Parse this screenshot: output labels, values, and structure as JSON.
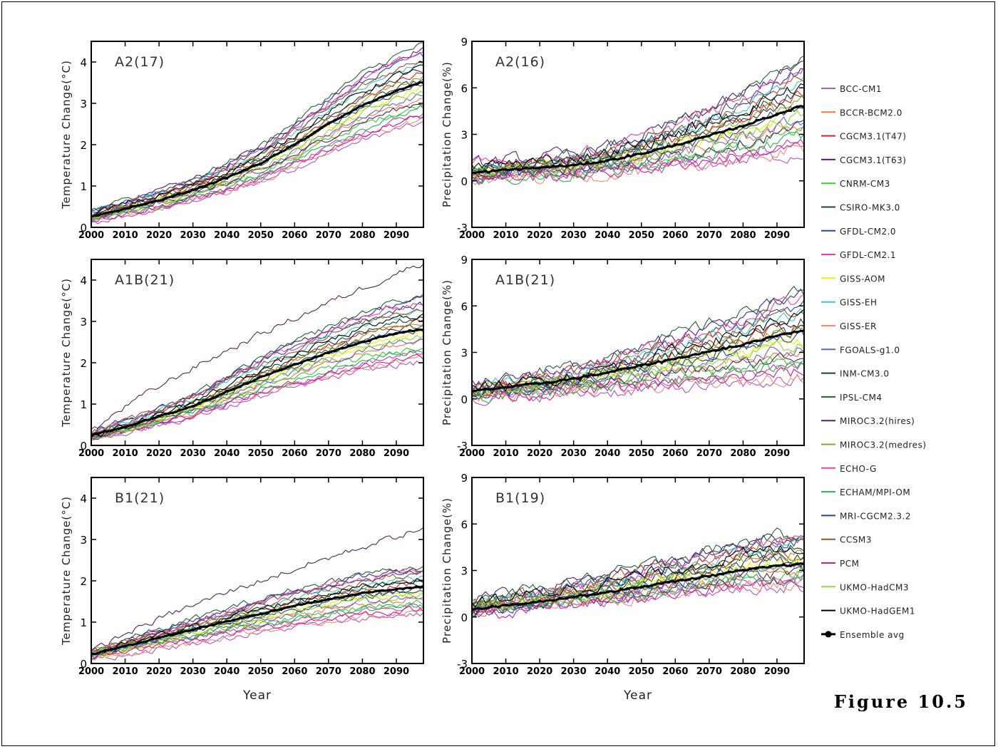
{
  "figure_label": "Figure 10.5",
  "models": [
    {
      "name": "BCC-CM1",
      "color": "#b455c8"
    },
    {
      "name": "BCCR-BCM2.0",
      "color": "#f07a3a"
    },
    {
      "name": "CGCM3.1(T47)",
      "color": "#e02020"
    },
    {
      "name": "CGCM3.1(T63)",
      "color": "#5a1a8c"
    },
    {
      "name": "CNRM-CM3",
      "color": "#3cc83c"
    },
    {
      "name": "CSIRO-MK3.0",
      "color": "#1e4646"
    },
    {
      "name": "GFDL-CM2.0",
      "color": "#2846a0"
    },
    {
      "name": "GFDL-CM2.1",
      "color": "#d23cb4"
    },
    {
      "name": "GISS-AOM",
      "color": "#f0f000"
    },
    {
      "name": "GISS-EH",
      "color": "#3cc8c8"
    },
    {
      "name": "GISS-ER",
      "color": "#f08c78"
    },
    {
      "name": "FGOALS-g1.0",
      "color": "#6464c8"
    },
    {
      "name": "INM-CM3.0",
      "color": "#144628"
    },
    {
      "name": "IPSL-CM4",
      "color": "#1e6432"
    },
    {
      "name": "MIROC3.2(hires)",
      "color": "#50285a"
    },
    {
      "name": "MIROC3.2(medres)",
      "color": "#96a028"
    },
    {
      "name": "ECHO-G",
      "color": "#e646a0"
    },
    {
      "name": "ECHAM/MPI-OM",
      "color": "#28b450"
    },
    {
      "name": "MRI-CGCM2.3.2",
      "color": "#284682"
    },
    {
      "name": "CCSM3",
      "color": "#a0502d"
    },
    {
      "name": "PCM",
      "color": "#c81e96"
    },
    {
      "name": "UKMO-HadCM3",
      "color": "#8cdc3c"
    },
    {
      "name": "UKMO-HadGEM1",
      "color": "#000000"
    }
  ],
  "ensemble_label": "Ensemble avg",
  "chart_data": [
    {
      "type": "line",
      "panel": "A2 temperature",
      "label": "A2(17)",
      "ylabel": "Temperature Change(°C)",
      "xlabel": "",
      "x_ticks": [
        2000,
        2010,
        2020,
        2030,
        2040,
        2050,
        2060,
        2070,
        2080,
        2090
      ],
      "xlim": [
        2000,
        2098
      ],
      "ylim": [
        0,
        4.5
      ],
      "y_ticks": [
        0,
        1,
        2,
        3,
        4
      ],
      "ensemble": {
        "x": [
          2000,
          2010,
          2020,
          2030,
          2040,
          2050,
          2060,
          2070,
          2080,
          2090,
          2097
        ],
        "y": [
          0.25,
          0.45,
          0.65,
          0.9,
          1.2,
          1.55,
          2.0,
          2.5,
          2.95,
          3.3,
          3.5
        ]
      },
      "spread": {
        "low_end": 2.5,
        "high_end": 4.4
      }
    },
    {
      "type": "line",
      "panel": "A2 precipitation",
      "label": "A2(16)",
      "ylabel": "Precipitation Change(%)",
      "xlabel": "",
      "x_ticks": [
        2000,
        2010,
        2020,
        2030,
        2040,
        2050,
        2060,
        2070,
        2080,
        2090
      ],
      "xlim": [
        2000,
        2098
      ],
      "ylim": [
        -3,
        9
      ],
      "y_ticks": [
        -3,
        0,
        3,
        6,
        9
      ],
      "ensemble": {
        "x": [
          2000,
          2010,
          2020,
          2030,
          2040,
          2050,
          2060,
          2070,
          2080,
          2090,
          2097
        ],
        "y": [
          0.5,
          0.7,
          0.85,
          1.0,
          1.3,
          1.75,
          2.3,
          2.9,
          3.55,
          4.3,
          4.8
        ]
      },
      "spread": {
        "low_end": 1.7,
        "high_end": 7.8
      }
    },
    {
      "type": "line",
      "panel": "A1B temperature",
      "label": "A1B(21)",
      "ylabel": "Temperature Change(°C)",
      "xlabel": "",
      "x_ticks": [
        2000,
        2010,
        2020,
        2030,
        2040,
        2050,
        2060,
        2070,
        2080,
        2090
      ],
      "xlim": [
        2000,
        2098
      ],
      "ylim": [
        0,
        4.5
      ],
      "y_ticks": [
        0,
        1,
        2,
        3,
        4
      ],
      "ensemble": {
        "x": [
          2000,
          2010,
          2020,
          2030,
          2040,
          2050,
          2060,
          2070,
          2080,
          2090,
          2097
        ],
        "y": [
          0.25,
          0.45,
          0.7,
          0.95,
          1.3,
          1.65,
          1.95,
          2.25,
          2.5,
          2.72,
          2.8
        ]
      },
      "spread": {
        "low_end": 2.0,
        "high_end": 3.6
      },
      "outlier": {
        "model": "MIROC3.2(hires)",
        "end": 4.4
      }
    },
    {
      "type": "line",
      "panel": "A1B precipitation",
      "label": "A1B(21)",
      "ylabel": "Precipitation Change(%)",
      "xlabel": "",
      "x_ticks": [
        2000,
        2010,
        2020,
        2030,
        2040,
        2050,
        2060,
        2070,
        2080,
        2090
      ],
      "xlim": [
        2000,
        2098
      ],
      "ylim": [
        -3,
        9
      ],
      "y_ticks": [
        -3,
        0,
        3,
        6,
        9
      ],
      "ensemble": {
        "x": [
          2000,
          2010,
          2020,
          2030,
          2040,
          2050,
          2060,
          2070,
          2080,
          2090,
          2097
        ],
        "y": [
          0.5,
          0.75,
          1.0,
          1.3,
          1.7,
          2.15,
          2.6,
          3.05,
          3.5,
          4.1,
          4.4
        ]
      },
      "spread": {
        "low_end": 1.2,
        "high_end": 6.9
      }
    },
    {
      "type": "line",
      "panel": "B1 temperature",
      "label": "B1(21)",
      "ylabel": "Temperature Change(°C)",
      "xlabel": "Year",
      "x_ticks": [
        2000,
        2010,
        2020,
        2030,
        2040,
        2050,
        2060,
        2070,
        2080,
        2090
      ],
      "xlim": [
        2000,
        2098
      ],
      "ylim": [
        0,
        4.5
      ],
      "y_ticks": [
        0,
        1,
        2,
        3,
        4
      ],
      "ensemble": {
        "x": [
          2000,
          2010,
          2020,
          2030,
          2040,
          2050,
          2060,
          2070,
          2080,
          2090,
          2097
        ],
        "y": [
          0.22,
          0.42,
          0.62,
          0.82,
          1.02,
          1.2,
          1.4,
          1.55,
          1.7,
          1.8,
          1.85
        ]
      },
      "spread": {
        "low_end": 1.2,
        "high_end": 2.35
      },
      "outlier": {
        "model": "MIROC3.2(hires)",
        "end": 3.25
      }
    },
    {
      "type": "line",
      "panel": "B1 precipitation",
      "label": "B1(19)",
      "ylabel": "Precipitation Change(%)",
      "xlabel": "Year",
      "x_ticks": [
        2000,
        2010,
        2020,
        2030,
        2040,
        2050,
        2060,
        2070,
        2080,
        2090
      ],
      "xlim": [
        2000,
        2098
      ],
      "ylim": [
        -3,
        9
      ],
      "y_ticks": [
        -3,
        0,
        3,
        6,
        9
      ],
      "ensemble": {
        "x": [
          2000,
          2010,
          2020,
          2030,
          2040,
          2050,
          2060,
          2070,
          2080,
          2090,
          2097
        ],
        "y": [
          0.5,
          0.75,
          1.0,
          1.3,
          1.6,
          1.95,
          2.3,
          2.65,
          3.0,
          3.3,
          3.4
        ]
      },
      "spread": {
        "low_end": 2.0,
        "high_end": 5.4
      }
    }
  ]
}
